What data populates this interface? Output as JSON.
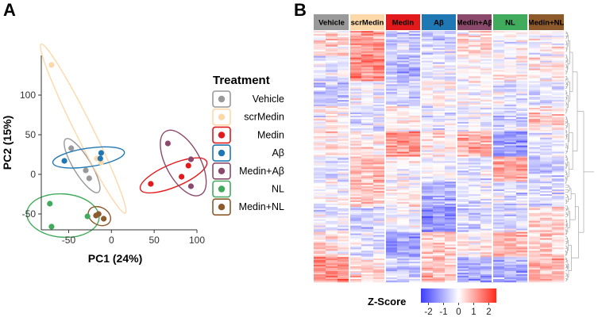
{
  "panel_a_label": "A",
  "panel_b_label": "B",
  "chart_data": [
    {
      "type": "scatter",
      "title": "",
      "xlabel": "PC1 (24%)",
      "ylabel": "PC2 (15%)",
      "xlim": [
        -82,
        100
      ],
      "ylim": [
        -70,
        150
      ],
      "xticks": [
        -50,
        0,
        50,
        100
      ],
      "xtick_labels": [
        "-50",
        "0",
        "50",
        "100"
      ],
      "yticks": [
        -50,
        0,
        50,
        100
      ],
      "ytick_labels": [
        "-50",
        "0",
        "50",
        "100"
      ],
      "legend_title": "Treatment",
      "legend_position": "right",
      "series": [
        {
          "name": "Vehicle",
          "color": "#999999",
          "points": [
            [
              -47,
              33
            ],
            [
              -30,
              5
            ],
            [
              -26,
              -5
            ]
          ]
        },
        {
          "name": "scrMedin",
          "color": "#FDD8A8",
          "points": [
            [
              -70,
              138
            ],
            [
              -17,
              20
            ],
            [
              -12,
              15
            ]
          ]
        },
        {
          "name": "Medin",
          "color": "#E31A1C",
          "points": [
            [
              46,
              -12
            ],
            [
              82,
              -3
            ],
            [
              90,
              11
            ]
          ]
        },
        {
          "name": "Aβ",
          "color": "#1F78B4",
          "points": [
            [
              -55,
              17
            ],
            [
              -12,
              27
            ],
            [
              -13,
              20
            ]
          ]
        },
        {
          "name": "Medin+Aβ",
          "color": "#8B4A6B",
          "points": [
            [
              66,
              39
            ],
            [
              93,
              19
            ],
            [
              93,
              -15
            ]
          ]
        },
        {
          "name": "NL",
          "color": "#41AB5D",
          "points": [
            [
              -72,
              -37
            ],
            [
              -70,
              -66
            ],
            [
              -28,
              -53
            ]
          ]
        },
        {
          "name": "Medin+NL",
          "color": "#8C5A2B",
          "points": [
            [
              -18,
              -52
            ],
            [
              -15,
              -50
            ],
            [
              -9,
              -56
            ]
          ]
        }
      ]
    },
    {
      "type": "heatmap",
      "groups": [
        "Vehicle",
        "scrMedin",
        "Medin",
        "Aβ",
        "Medin+Aβ",
        "NL",
        "Medin+NL"
      ],
      "group_colors": [
        "#999999",
        "#FDD8A8",
        "#E31A1C",
        "#1F78B4",
        "#8B4A6B",
        "#41AB5D",
        "#8C5A2B"
      ],
      "samples_per_group": 3,
      "color_scale_title": "Z-Score",
      "color_scale_range": [
        -2.5,
        2.5
      ],
      "color_scale_ticks": [
        -2,
        -1,
        0,
        1,
        2
      ],
      "color_scale_tick_labels": [
        "-2",
        "-1",
        "0",
        "1",
        "2"
      ],
      "color_low": "#3D3DFF",
      "color_mid": "#FFFFFF",
      "color_high": "#FF2A1A",
      "row_dendrogram": true
    }
  ]
}
